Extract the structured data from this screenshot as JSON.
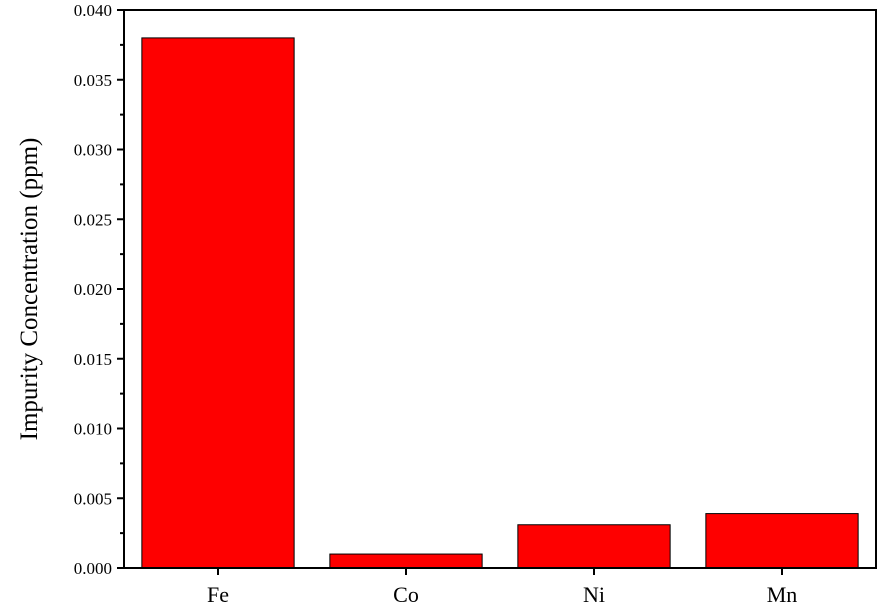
{
  "chart_data": {
    "type": "bar",
    "categories": [
      "Fe",
      "Co",
      "Ni",
      "Mn"
    ],
    "values": [
      0.038,
      0.001,
      0.0031,
      0.0039
    ],
    "title": "",
    "xlabel": "",
    "ylabel": "Impurity Concentration (ppm)",
    "ylim": [
      0,
      0.04
    ],
    "yticks": [
      "0.000",
      "0.005",
      "0.010",
      "0.015",
      "0.020",
      "0.025",
      "0.030",
      "0.035",
      "0.040"
    ],
    "bar_color": "#fe0000",
    "grid": false,
    "legend": "none"
  }
}
